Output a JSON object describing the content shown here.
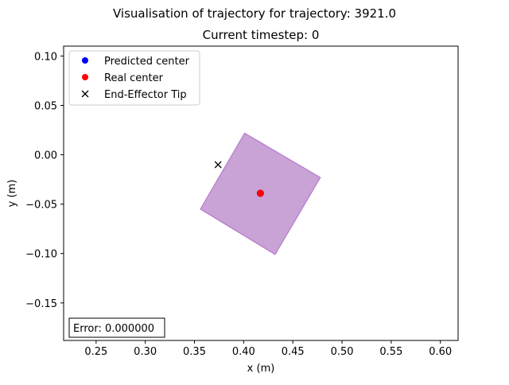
{
  "chart_data": {
    "type": "scatter",
    "suptitle": "Visualisation of trajectory for trajectory: 3921.0",
    "title": "Current timestep: 0",
    "xlabel": "x (m)",
    "ylabel": "y (m)",
    "xlim": [
      0.217,
      0.618
    ],
    "ylim": [
      -0.188,
      0.11
    ],
    "xticks": [
      0.25,
      0.3,
      0.35,
      0.4,
      0.45,
      0.5,
      0.55,
      0.6
    ],
    "xtick_labels": [
      "0.25",
      "0.30",
      "0.35",
      "0.40",
      "0.45",
      "0.50",
      "0.55",
      "0.60"
    ],
    "yticks": [
      0.1,
      0.05,
      0.0,
      -0.05,
      -0.1,
      -0.15
    ],
    "ytick_labels": [
      "0.10",
      "0.05",
      "0.00",
      "−0.05",
      "−0.10",
      "−0.15"
    ],
    "legend": {
      "placement": "top-left",
      "entries": [
        {
          "label": "Predicted center",
          "marker": "circle",
          "color": "#0000ff"
        },
        {
          "label": "Real center",
          "marker": "circle",
          "color": "#ff0000"
        },
        {
          "label": "End-Effector Tip",
          "marker": "x",
          "color": "#000000"
        }
      ]
    },
    "object_polygon": {
      "fill": "#c9a2d6",
      "edge": "#b070c8",
      "vertices": [
        [
          0.401,
          0.022
        ],
        [
          0.478,
          -0.023
        ],
        [
          0.432,
          -0.101
        ],
        [
          0.356,
          -0.055
        ]
      ]
    },
    "series": [
      {
        "name": "Predicted center",
        "points": [
          [
            0.417,
            -0.039
          ]
        ],
        "color": "#0000ff",
        "marker": "circle"
      },
      {
        "name": "Real center",
        "points": [
          [
            0.417,
            -0.039
          ]
        ],
        "color": "#ff0000",
        "marker": "circle"
      },
      {
        "name": "End-Effector Tip",
        "points": [
          [
            0.374,
            -0.01
          ]
        ],
        "color": "#000000",
        "marker": "x"
      }
    ],
    "error_box": {
      "text": "Error: 0.000000"
    }
  }
}
